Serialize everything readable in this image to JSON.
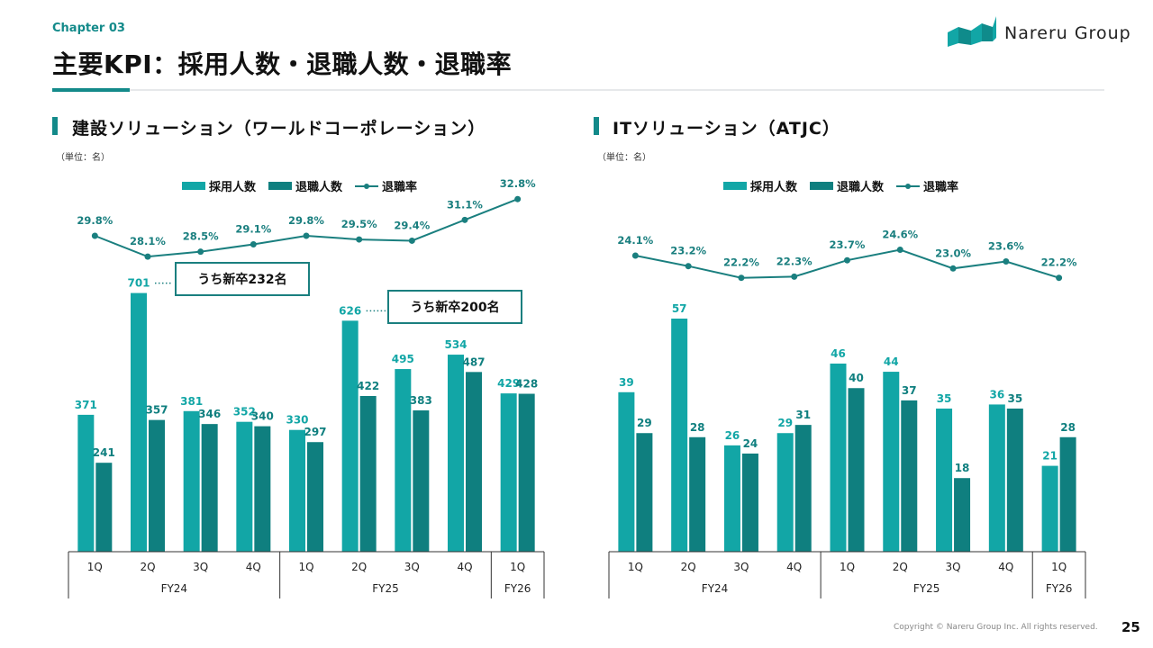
{
  "header": {
    "chapter": "Chapter 03",
    "title": "主要KPI：採用人数・退職人数・退職率",
    "logo_text": "Nareru Group"
  },
  "footer": {
    "copyright": "Copyright © Nareru Group Inc. All rights reserved.",
    "page_number": "25"
  },
  "colors": {
    "accent": "#138a8a",
    "hires": "#12a6a6",
    "leavers": "#0f7f7f",
    "rate_line": "#1a7f7f"
  },
  "legend": {
    "hires": "採用人数",
    "leavers": "退職人数",
    "rate": "退職率"
  },
  "chart_data": [
    {
      "type": "bar",
      "title": "建設ソリューション（ワールドコーポレーション）",
      "unit_label": "（単位：名）",
      "categories": [
        "1Q",
        "2Q",
        "3Q",
        "4Q",
        "1Q",
        "2Q",
        "3Q",
        "4Q",
        "1Q"
      ],
      "groups": [
        {
          "label": "FY24",
          "span": 4
        },
        {
          "label": "FY25",
          "span": 4
        },
        {
          "label": "FY26",
          "span": 1
        }
      ],
      "series": [
        {
          "name": "採用人数",
          "kind": "bar",
          "values": [
            371,
            701,
            381,
            352,
            330,
            626,
            495,
            534,
            429
          ]
        },
        {
          "name": "退職人数",
          "kind": "bar",
          "values": [
            241,
            357,
            346,
            340,
            297,
            422,
            383,
            487,
            428
          ]
        },
        {
          "name": "退職率",
          "kind": "line",
          "unit": "%",
          "values": [
            29.8,
            28.1,
            28.5,
            29.1,
            29.8,
            29.5,
            29.4,
            31.1,
            32.8
          ]
        }
      ],
      "rate_labels": [
        "29.8%",
        "28.1%",
        "28.5%",
        "29.1%",
        "29.8%",
        "29.5%",
        "29.4%",
        "31.1%",
        "32.8%"
      ],
      "annotations": [
        {
          "category_index": 1,
          "text": "うち新卒232名"
        },
        {
          "category_index": 5,
          "text": "うち新卒200名"
        }
      ],
      "legend_position": "top-center"
    },
    {
      "type": "bar",
      "title": "ITソリューション（ATJC）",
      "unit_label": "（単位：名）",
      "categories": [
        "1Q",
        "2Q",
        "3Q",
        "4Q",
        "1Q",
        "2Q",
        "3Q",
        "4Q",
        "1Q"
      ],
      "groups": [
        {
          "label": "FY24",
          "span": 4
        },
        {
          "label": "FY25",
          "span": 4
        },
        {
          "label": "FY26",
          "span": 1
        }
      ],
      "series": [
        {
          "name": "採用人数",
          "kind": "bar",
          "values": [
            39,
            57,
            26,
            29,
            46,
            44,
            35,
            36,
            21
          ]
        },
        {
          "name": "退職人数",
          "kind": "bar",
          "values": [
            29,
            28,
            24,
            31,
            40,
            37,
            18,
            35,
            28
          ]
        },
        {
          "name": "退職率",
          "kind": "line",
          "unit": "%",
          "values": [
            24.1,
            23.2,
            22.2,
            22.3,
            23.7,
            24.6,
            23.0,
            23.6,
            22.2
          ]
        }
      ],
      "rate_labels": [
        "24.1%",
        "23.2%",
        "22.2%",
        "22.3%",
        "23.7%",
        "24.6%",
        "23.0%",
        "23.6%",
        "22.2%"
      ],
      "annotations": [],
      "legend_position": "top-center"
    }
  ]
}
